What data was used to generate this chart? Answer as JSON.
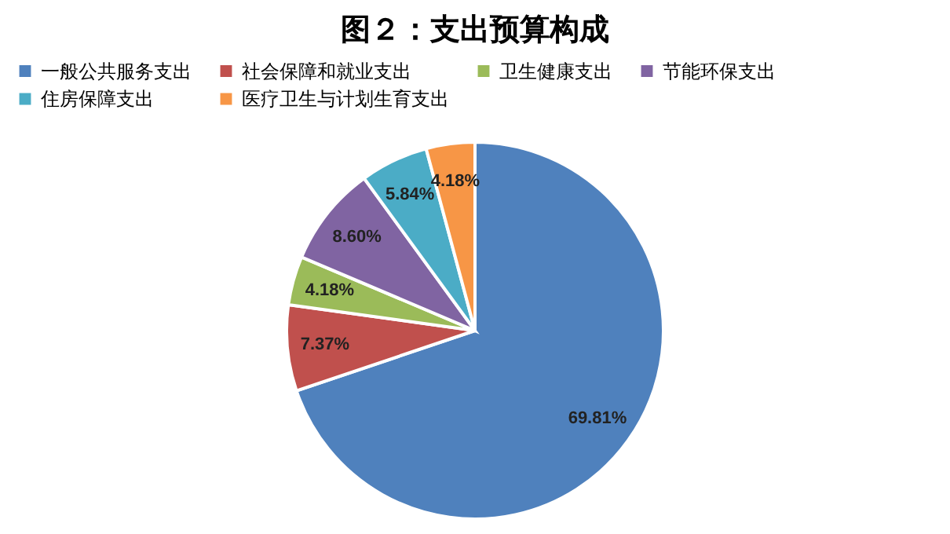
{
  "chart_data": {
    "type": "pie",
    "title": "图２：支出预算构成",
    "categories": [
      "一般公共服务支出",
      "社会保障和就业支出",
      "卫生健康支出",
      "节能环保支出",
      "住房保障支出",
      "医疗卫生与计划生育支出"
    ],
    "values": [
      69.81,
      7.37,
      4.18,
      8.6,
      5.84,
      4.18
    ],
    "value_labels": [
      "69.81%",
      "7.37%",
      "4.18%",
      "8.60%",
      "5.84%",
      "4.18%"
    ],
    "colors": [
      "#4f81bd",
      "#c0504d",
      "#9bbb59",
      "#8064a2",
      "#4bacc6",
      "#f79646"
    ],
    "legend": "top"
  }
}
